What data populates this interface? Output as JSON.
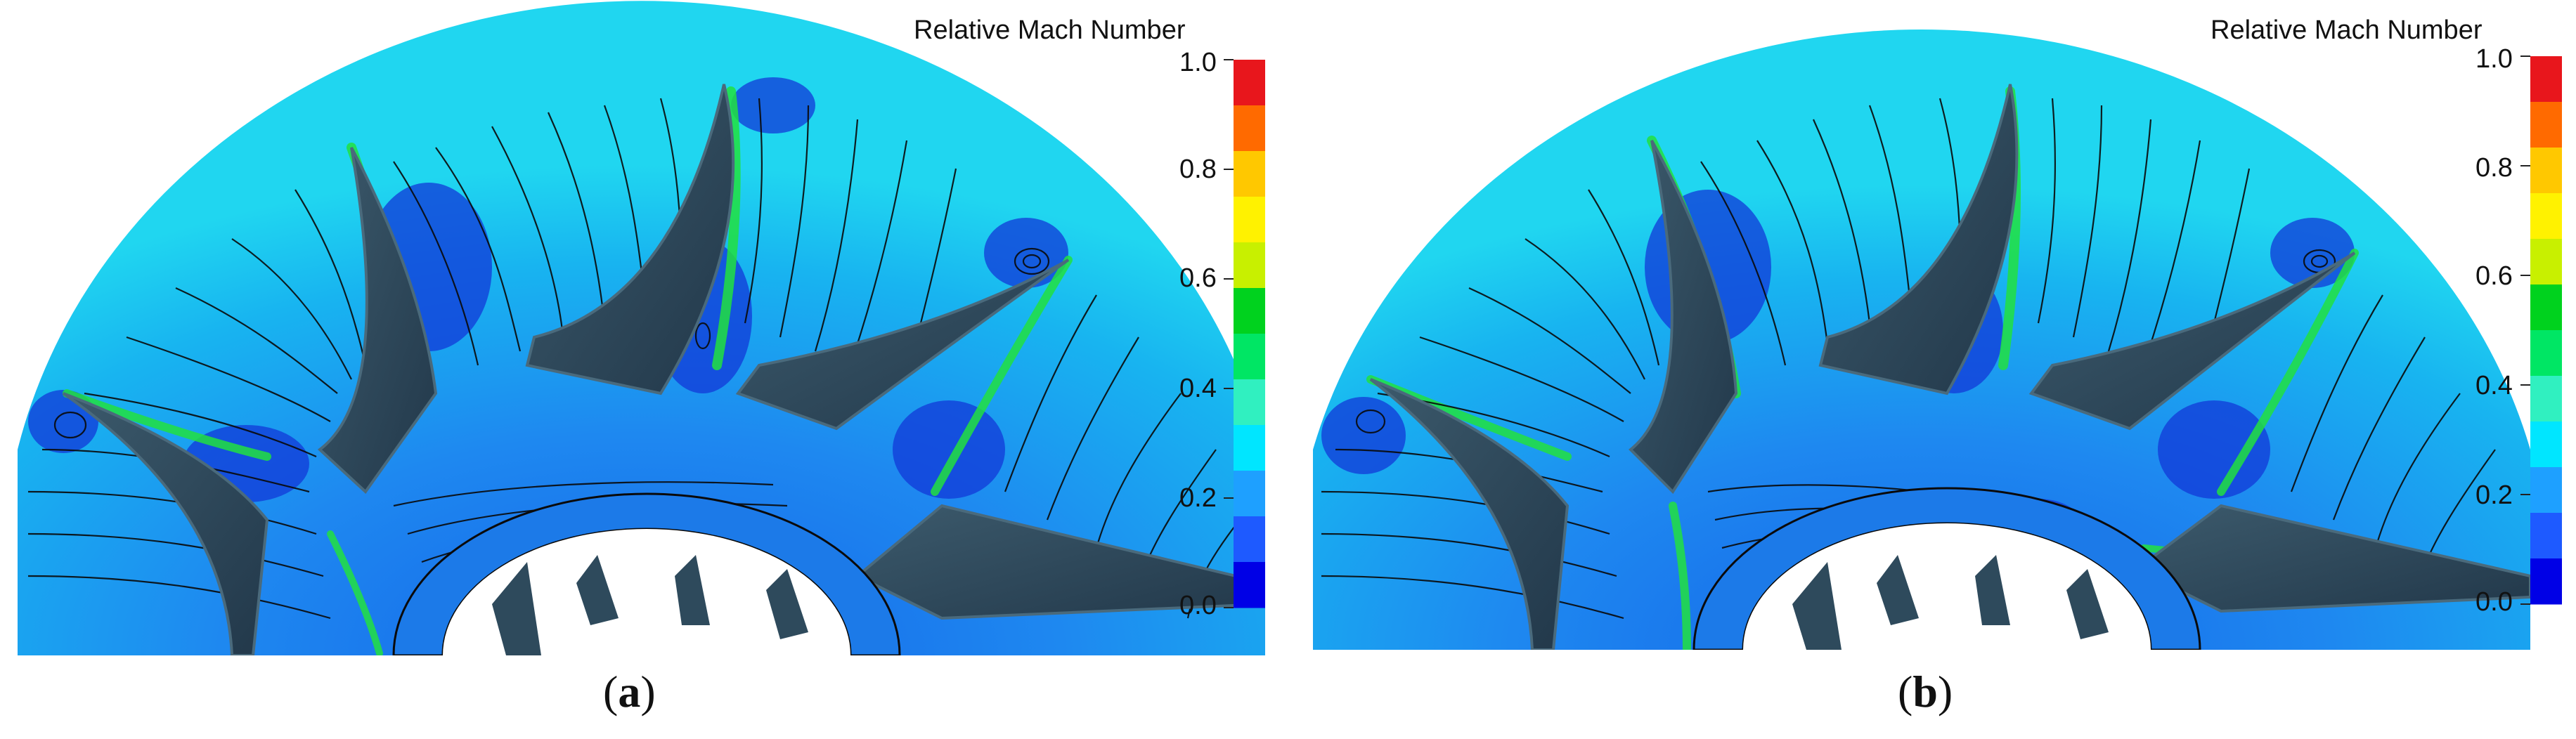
{
  "panels": [
    {
      "id": "a",
      "caption_open": "(",
      "caption_letter": "a",
      "caption_close": ")",
      "colorbar": {
        "title": "Relative Mach Number",
        "ticks": [
          "1.0",
          "0.8",
          "0.6",
          "0.4",
          "0.2",
          "0.0"
        ],
        "colors": [
          "#e8161c",
          "#ff6a00",
          "#ffc800",
          "#fff200",
          "#c8f000",
          "#00d21e",
          "#00e664",
          "#30f0c0",
          "#00e6ff",
          "#1ea0ff",
          "#1e5aff",
          "#0000e6"
        ]
      }
    },
    {
      "id": "b",
      "caption_open": "(",
      "caption_letter": "b",
      "caption_close": ")",
      "colorbar": {
        "title": "Relative Mach Number",
        "ticks": [
          "1.0",
          "0.8",
          "0.6",
          "0.4",
          "0.2",
          "0.0"
        ],
        "colors": [
          "#e8161c",
          "#ff6a00",
          "#ffc800",
          "#fff200",
          "#c8f000",
          "#00d21e",
          "#00e664",
          "#30f0c0",
          "#00e6ff",
          "#1ea0ff",
          "#1e5aff",
          "#0000e6"
        ]
      }
    }
  ],
  "palette": {
    "field_base": "#1e88f0",
    "field_light": "#19c8f0",
    "field_dark": "#123ce0",
    "jet_green": "#22e040",
    "blade": "#2e4a5c",
    "blade_edge": "#4a6a7c",
    "streamline": "#0a0a0a"
  }
}
